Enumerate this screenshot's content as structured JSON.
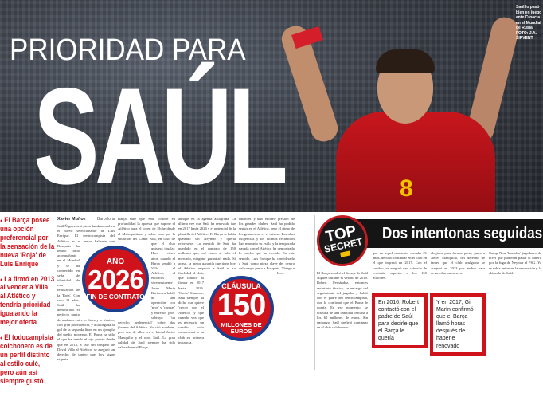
{
  "headline": {
    "kicker": "PRIORIDAD PARA",
    "name": "SAÚL"
  },
  "photo_caption": "Saúl lo pasó bien en juego ante Croacia en el Mundial de Rusia FOTO: J.A. SIRVENT",
  "highlights": [
    "El Barça posee una opción preferencial por la sensación de la nueva 'Roja' de Luis Enrique",
    "La firmó en 2013 al vender a Villa al Atlético y tendría prioridad igualando la mejor oferta",
    "El todocampista colchonero es de un perfil distinto al estilo culé, pero aún así siempre gustó"
  ],
  "article1": {
    "author": "Xavier Muñoz",
    "city": "Barcelona",
    "columns": [
      "Saúl Ñíguez será pieza fundamental en el nuevo seleccionador de Luis Enrique. El centrocampista del Atlético es el mejor baluarte que Busquets ha tenido como acompañante en el Mundial y se ha convertido en seña de identidad de esta renovación de la 'Roja'. Con solo 23 años, Saúl ha demostrado el perfecto punto de madurez entre lo físico y lo técnico, con gran polivalencia, y a la llegada al gol de la segunda línea en un ejemplo del medio moderno. El Barça ha sido el que ha tenido el ojo puesto desde que en 2013, a raíz del traspaso de David Villa al Atlético, se aseguró un derecho de tanteo que hoy sigue vigente.",
      "Barça sabe que Saúl conoce en profundidad la apuesta que supone el Atlético para el joven de Elche desde el Metropolitano y sobre todo por la situación del Camp Nou, en caso de que el club quisiera igualar. Hace cinco años, cuando el Barça vendió a Villa al Atlético, el entonces vicepresidente Josep Maria Bartomeu habló de una operación con 'pros' y 'contras' y entre los 'pros' subrayó 'un derecho preferencial' sobre dos jóvenes del Atlético. No citó nombres, pero uno de ellos era el lateral Javier Manquillo y el otro, Saúl. La gran calidad de Saúl siempre ha sido valorada en el Barça.",
      "aunque en la agenda azulgrana. La última vez que Saúl ha renovado fue en 2017 hasta 2026 y el potencial de la plantilla del Atlético. El Barça se había quedado sin Neymar y quería reforzarse. La medida de Saúl ha quedado en el contrato de 150 millones que, así como se sabe el mercado, ninguno garantizó nada. Si acaso, la mejor garantía que tiene hoy el Atlético respecto a Saúl es su fidelidad al club, que ratificó al firmar en 2017 hasta 2026. 'Cholo' Simeone, Saúl siempre ha dicho que quiere 'crecer con el Atlético' y que cuando vea que es necesario un cambio solo comunicará a su club en primera instancia.",
      "finances' y una 'enorme presión' de los grandes clubes. Saúl ha podido seguir en el Atlético, pero el ritmo de los grandes no es el mismo. Las altas exigencias y los últimos recambios han marcado su estilo y la temporada pasada con el Atlético ha demostrado lo mucho que ha crecido. En este sentido, Luis Enrique ha considerado a Saúl como pieza clave del centro del campo junto a Busquets, Thiago e Isco."
    ],
    "badge_contract": {
      "label": "AÑO",
      "value": "2026",
      "sub": "FIN DE CONTRATO"
    },
    "badge_clause": {
      "label": "CLÁUSULA",
      "value": "150",
      "sub": "MILLONES DE EUROS"
    }
  },
  "article2": {
    "section_badge": {
      "line1": "TOP",
      "line2": "SECRET"
    },
    "title": "Dos intentonas seguidas",
    "columns": [
      "El Barça sondeó el fichaje de Saúl Ñíguez durante el verano de 2016. Robert Fernández, entonces secretario técnico, se encargó del seguimiento del jugador y habló con el padre del centrocampista, que le confirmó que el Barça le quería. En ese momento, se discutía de una cantidad cercana a los 60 millones de euros. Sin embargo, Saúl prefirió continuar en el club colchonero.",
      "que en aquel momento contaba 21 años, decidió continuar en el club en el que ingresó en 2017. Con el cambio, se aseguró una cláusula de rescisión superior a los 150 millones.",
      "elegidos para formar parte, junto a Javier Manquillo, del derecho de tanteo que el club azulgrana se aseguró en 2013 por ambos para desarrollar su carrera.",
      "Camp Nou 'buscaba' jugadores de nivel que pudieran paliar el dinero por la fuga de Neymar al PSG. Ya se sabía entonces la renovación y la cláusula de Saúl."
    ],
    "quote1": "En 2016, Robert contactó con el padre de Saúl para decirle que el Barça le quería",
    "quote2": "Y en 2017, Gil Marín confirmó que el Barça llamó horas después de haberle renovado"
  },
  "colors": {
    "accent_red": "#d0121b",
    "badge_blue": "#1d3f8f",
    "header_black": "#151515"
  }
}
